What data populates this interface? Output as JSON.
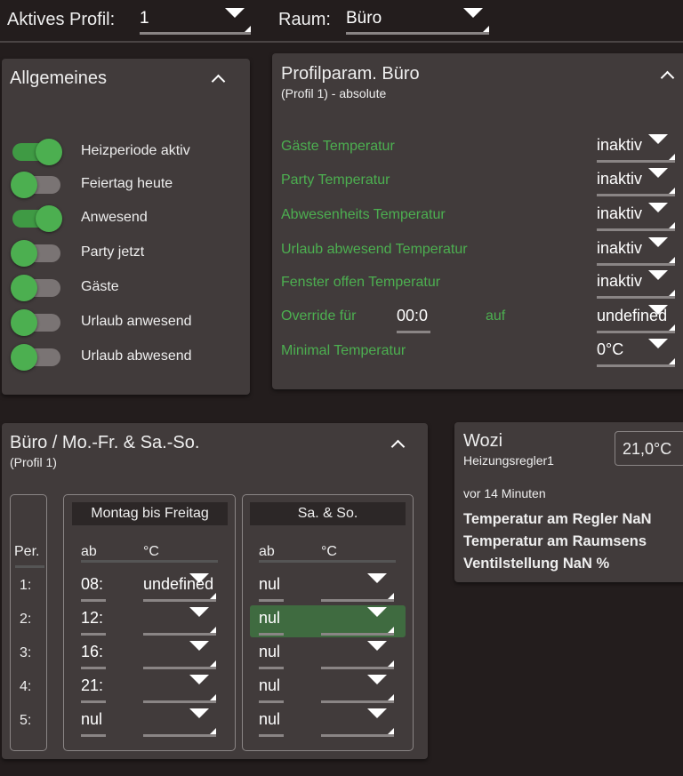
{
  "topbar": {
    "profile_label": "Aktives Profil:",
    "profile_value": "1",
    "room_label": "Raum:",
    "room_value": "Büro"
  },
  "general": {
    "title": "Allgemeines",
    "toggles": [
      {
        "label": "Heizperiode aktiv",
        "on": true
      },
      {
        "label": "Feiertag heute",
        "on": false
      },
      {
        "label": "Anwesend",
        "on": true
      },
      {
        "label": "Party jetzt",
        "on": false
      },
      {
        "label": "Gäste",
        "on": false
      },
      {
        "label": "Urlaub anwesend",
        "on": false
      },
      {
        "label": "Urlaub abwesend",
        "on": false
      }
    ]
  },
  "profile_params": {
    "title": "Profilparam. Büro",
    "subtitle": "(Profil 1) - absolute",
    "rows": [
      {
        "label": "Gäste Temperatur",
        "value": "inaktiv"
      },
      {
        "label": "Party Temperatur",
        "value": "inaktiv"
      },
      {
        "label": "Abwesenheits Temperatur",
        "value": "inaktiv"
      },
      {
        "label": "Urlaub abwesend Temperatur",
        "value": "inaktiv"
      },
      {
        "label": "Fenster offen Temperatur",
        "value": "inaktiv"
      }
    ],
    "override": {
      "label": "Override für",
      "time": "00:0",
      "on_label": "auf",
      "value": "undefined"
    },
    "min_temp": {
      "label": "Minimal Temperatur",
      "value": "0°C"
    }
  },
  "schedule": {
    "title": "Büro / Mo.-Fr. & Sa.-So.",
    "subtitle": "(Profil 1)",
    "period_header": "Per.",
    "periods": [
      "1:",
      "2:",
      "3:",
      "4:",
      "5:"
    ],
    "weekday": {
      "title": "Montag bis Freitag",
      "col_from": "ab",
      "col_temp": "°C",
      "rows": [
        {
          "from": "08:",
          "temp": "undefined"
        },
        {
          "from": "12:",
          "temp": ""
        },
        {
          "from": "16:",
          "temp": ""
        },
        {
          "from": "21:",
          "temp": ""
        },
        {
          "from": "nul",
          "temp": ""
        }
      ]
    },
    "weekend": {
      "title": "Sa. & So.",
      "col_from": "ab",
      "col_temp": "°C",
      "highlighted_row": 2,
      "rows": [
        {
          "from": "nul",
          "temp": ""
        },
        {
          "from": "nul",
          "temp": ""
        },
        {
          "from": "nul",
          "temp": ""
        },
        {
          "from": "nul",
          "temp": ""
        },
        {
          "from": "nul",
          "temp": ""
        }
      ]
    }
  },
  "thermostat": {
    "name": "Wozi",
    "device": "Heizungsregler1",
    "setpoint": "21,0°C",
    "updated": "vor 14 Minuten",
    "lines": [
      "Temperatur am Regler NaN",
      "Temperatur am Raumsens",
      "Ventilstellung NaN %"
    ]
  },
  "colors": {
    "accent_green": "#4caf50",
    "panel": "#413b3b",
    "background": "#231d1d",
    "highlight": "#3f6b40"
  }
}
